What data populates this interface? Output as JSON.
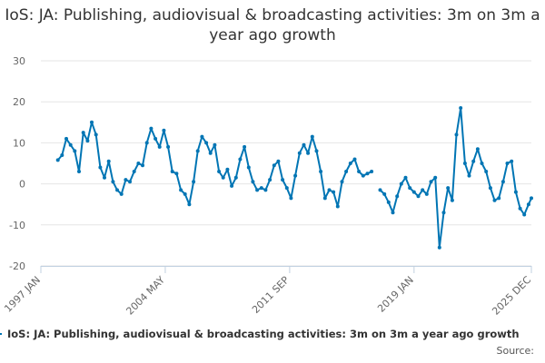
{
  "chart_data": {
    "type": "line",
    "title": "IoS: JA: Publishing, audiovisual & broadcasting activities: 3m on 3m a year ago growth",
    "xlabel": "",
    "ylabel": "",
    "ylim": [
      -20,
      30
    ],
    "y_ticks": [
      30,
      20,
      10,
      0,
      -10,
      -20
    ],
    "x_ticks": [
      "1997 JAN",
      "2004 MAY",
      "2011 SEP",
      "2019 JAN",
      "2025 DEC"
    ],
    "x_range": [
      "1997-01",
      "2025-12"
    ],
    "grid": true,
    "legend_position": "bottom",
    "source_text": "Source:",
    "series": [
      {
        "name": "IoS: JA: Publishing, audiovisual & broadcasting activities: 3m on 3m a year ago growth",
        "color": "#0075b4",
        "points": [
          [
            "1998-01",
            5.8
          ],
          [
            "1998-04",
            7.0
          ],
          [
            "1998-07",
            11.0
          ],
          [
            "1998-10",
            9.5
          ],
          [
            "1999-01",
            8.0
          ],
          [
            "1999-04",
            3.0
          ],
          [
            "1999-07",
            12.5
          ],
          [
            "1999-10",
            10.5
          ],
          [
            "2000-01",
            15.0
          ],
          [
            "2000-04",
            12.0
          ],
          [
            "2000-07",
            4.0
          ],
          [
            "2000-10",
            1.5
          ],
          [
            "2001-01",
            5.5
          ],
          [
            "2001-04",
            0.5
          ],
          [
            "2001-07",
            -1.5
          ],
          [
            "2001-10",
            -2.5
          ],
          [
            "2002-01",
            1.0
          ],
          [
            "2002-04",
            0.5
          ],
          [
            "2002-07",
            3.0
          ],
          [
            "2002-10",
            5.0
          ],
          [
            "2003-01",
            4.5
          ],
          [
            "2003-04",
            10.0
          ],
          [
            "2003-07",
            13.5
          ],
          [
            "2003-10",
            11.0
          ],
          [
            "2004-01",
            9.0
          ],
          [
            "2004-04",
            13.0
          ],
          [
            "2004-07",
            9.0
          ],
          [
            "2004-10",
            3.0
          ],
          [
            "2005-01",
            2.5
          ],
          [
            "2005-04",
            -1.5
          ],
          [
            "2005-07",
            -2.5
          ],
          [
            "2005-10",
            -5.0
          ],
          [
            "2006-01",
            0.5
          ],
          [
            "2006-04",
            8.0
          ],
          [
            "2006-07",
            11.5
          ],
          [
            "2006-10",
            10.0
          ],
          [
            "2007-01",
            7.5
          ],
          [
            "2007-04",
            9.5
          ],
          [
            "2007-07",
            3.0
          ],
          [
            "2007-10",
            1.5
          ],
          [
            "2008-01",
            3.5
          ],
          [
            "2008-04",
            -0.5
          ],
          [
            "2008-07",
            1.5
          ],
          [
            "2008-10",
            6.0
          ],
          [
            "2009-01",
            9.0
          ],
          [
            "2009-04",
            4.0
          ],
          [
            "2009-07",
            0.5
          ],
          [
            "2009-10",
            -1.5
          ],
          [
            "2010-01",
            -1.0
          ],
          [
            "2010-04",
            -1.5
          ],
          [
            "2010-07",
            1.0
          ],
          [
            "2010-10",
            4.5
          ],
          [
            "2011-01",
            5.5
          ],
          [
            "2011-04",
            1.0
          ],
          [
            "2011-07",
            -1.0
          ],
          [
            "2011-10",
            -3.5
          ],
          [
            "2012-01",
            2.0
          ],
          [
            "2012-04",
            7.5
          ],
          [
            "2012-07",
            9.5
          ],
          [
            "2012-10",
            7.5
          ],
          [
            "2013-01",
            11.5
          ],
          [
            "2013-04",
            8.0
          ],
          [
            "2013-07",
            3.0
          ],
          [
            "2013-10",
            -3.5
          ],
          [
            "2014-01",
            -1.5
          ],
          [
            "2014-04",
            -2.0
          ],
          [
            "2014-07",
            -5.5
          ],
          [
            "2014-10",
            0.5
          ],
          [
            "2015-01",
            3.0
          ],
          [
            "2015-04",
            5.0
          ],
          [
            "2015-07",
            6.0
          ],
          [
            "2015-10",
            3.0
          ],
          [
            "2016-01",
            2.0
          ],
          [
            "2016-04",
            2.5
          ],
          [
            "2016-07",
            3.0
          ],
          [
            "2016-10",
            null
          ],
          [
            "2017-01",
            -1.5
          ],
          [
            "2017-04",
            -2.5
          ],
          [
            "2017-07",
            -4.5
          ],
          [
            "2017-10",
            -7.0
          ],
          [
            "2018-01",
            -3.0
          ],
          [
            "2018-04",
            0.0
          ],
          [
            "2018-07",
            1.5
          ],
          [
            "2018-10",
            -1.0
          ],
          [
            "2019-01",
            -2.0
          ],
          [
            "2019-04",
            -3.0
          ],
          [
            "2019-07",
            -1.5
          ],
          [
            "2019-10",
            -2.5
          ],
          [
            "2020-01",
            0.5
          ],
          [
            "2020-04",
            1.5
          ],
          [
            "2020-07",
            -15.5
          ],
          [
            "2020-10",
            -7.0
          ],
          [
            "2021-01",
            -1.0
          ],
          [
            "2021-04",
            -4.0
          ],
          [
            "2021-07",
            12.0
          ],
          [
            "2021-10",
            18.5
          ],
          [
            "2022-01",
            5.0
          ],
          [
            "2022-04",
            2.0
          ],
          [
            "2022-07",
            5.5
          ],
          [
            "2022-10",
            8.5
          ],
          [
            "2023-01",
            5.0
          ],
          [
            "2023-04",
            3.0
          ],
          [
            "2023-07",
            -1.0
          ],
          [
            "2023-10",
            -4.0
          ],
          [
            "2024-01",
            -3.5
          ],
          [
            "2024-04",
            0.5
          ],
          [
            "2024-07",
            5.0
          ],
          [
            "2024-10",
            5.5
          ],
          [
            "2025-01",
            -2.0
          ],
          [
            "2025-04",
            -6.0
          ],
          [
            "2025-07",
            -7.5
          ],
          [
            "2025-10",
            -5.0
          ],
          [
            "2025-12",
            -3.5
          ]
        ]
      }
    ]
  }
}
